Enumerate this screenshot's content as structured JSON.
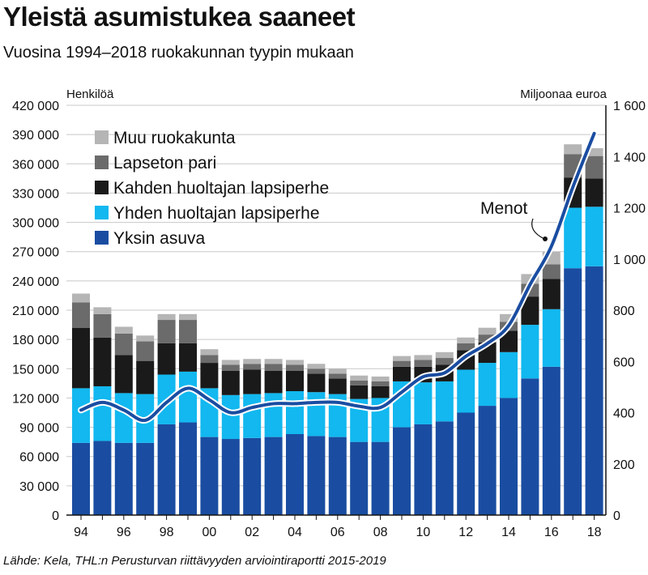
{
  "header": {
    "title": "Yleistä asumistukea saaneet",
    "subtitle": "Vuosina 1994–2018 ruokakunnan tyypin mukaan"
  },
  "footer": {
    "source": "Lähde: Kela, THL:n Perusturvan riittävyyden arviointiraportti 2015-2019"
  },
  "chart_data": {
    "type": "bar",
    "stacked": true,
    "categories": [
      "1994",
      "1995",
      "1996",
      "1997",
      "1998",
      "1999",
      "2000",
      "2001",
      "2002",
      "2003",
      "2004",
      "2005",
      "2006",
      "2007",
      "2008",
      "2009",
      "2010",
      "2011",
      "2012",
      "2013",
      "2014",
      "2015",
      "2016",
      "2017",
      "2018"
    ],
    "x_tick_labels": [
      "94",
      "96",
      "98",
      "00",
      "02",
      "04",
      "06",
      "08",
      "10",
      "12",
      "14",
      "16",
      "18"
    ],
    "left_axis": {
      "label": "Henkilöä",
      "ylim": [
        0,
        420000
      ],
      "tick_labels": [
        "0",
        "30 000",
        "60 000",
        "90 000",
        "120 000",
        "150 000",
        "180 000",
        "210 000",
        "240 000",
        "270 000",
        "300 000",
        "330 000",
        "360 000",
        "390 000",
        "420 000"
      ]
    },
    "right_axis": {
      "label": "Miljoonaa euroa",
      "ylim": [
        0,
        1600
      ],
      "tick_labels": [
        "0",
        "200",
        "400",
        "600",
        "800",
        "1 000",
        "1 200",
        "1 400",
        "1 600"
      ]
    },
    "series": [
      {
        "name": "Yksin asuva",
        "color": "#1a4da1",
        "values": [
          74000,
          76000,
          74000,
          74000,
          93000,
          95000,
          80000,
          78000,
          79000,
          80000,
          83000,
          81000,
          80000,
          75000,
          75000,
          90000,
          93000,
          96000,
          105000,
          112000,
          120000,
          140000,
          152000,
          253000,
          255000
        ]
      },
      {
        "name": "Yhden huoltajan lapsiperhe",
        "color": "#12b8ef",
        "values": [
          56000,
          56000,
          51000,
          50000,
          51000,
          52000,
          50000,
          45000,
          45000,
          45000,
          44000,
          45000,
          44000,
          44000,
          45000,
          47000,
          43000,
          41000,
          44000,
          44000,
          47000,
          55000,
          59000,
          62000,
          61000
        ]
      },
      {
        "name": "Kahden huoltajan lapsiperhe",
        "color": "#1a1a1a",
        "values": [
          62000,
          50000,
          39000,
          34000,
          32000,
          29000,
          26000,
          25000,
          25000,
          23000,
          21000,
          19000,
          16000,
          14000,
          12000,
          15000,
          16000,
          17000,
          20000,
          21000,
          22000,
          29000,
          31000,
          31000,
          29000
        ]
      },
      {
        "name": "Lapseton pari",
        "color": "#6b6b6b",
        "values": [
          26000,
          24000,
          22000,
          20000,
          24000,
          24000,
          8000,
          6000,
          6000,
          7000,
          6000,
          5000,
          5000,
          5000,
          5000,
          6000,
          7000,
          7000,
          7000,
          8000,
          9000,
          13000,
          15000,
          24000,
          23000
        ]
      },
      {
        "name": "Muu ruokakunta",
        "color": "#b5b5b5",
        "values": [
          9000,
          7000,
          7000,
          6000,
          6000,
          6000,
          6000,
          5000,
          5000,
          5000,
          5000,
          5000,
          5000,
          5000,
          5000,
          5000,
          5000,
          6000,
          6000,
          7000,
          8000,
          10000,
          13000,
          10000,
          8000
        ]
      }
    ],
    "line": {
      "name": "Menot",
      "color": "#1a4da1",
      "axis": "right",
      "values": [
        410,
        440,
        410,
        370,
        440,
        495,
        450,
        400,
        420,
        435,
        435,
        440,
        440,
        425,
        420,
        480,
        540,
        555,
        620,
        670,
        740,
        900,
        1050,
        1280,
        1490
      ]
    },
    "annotations": [
      "Menot"
    ],
    "legend_position": "top-left",
    "grid": true
  }
}
